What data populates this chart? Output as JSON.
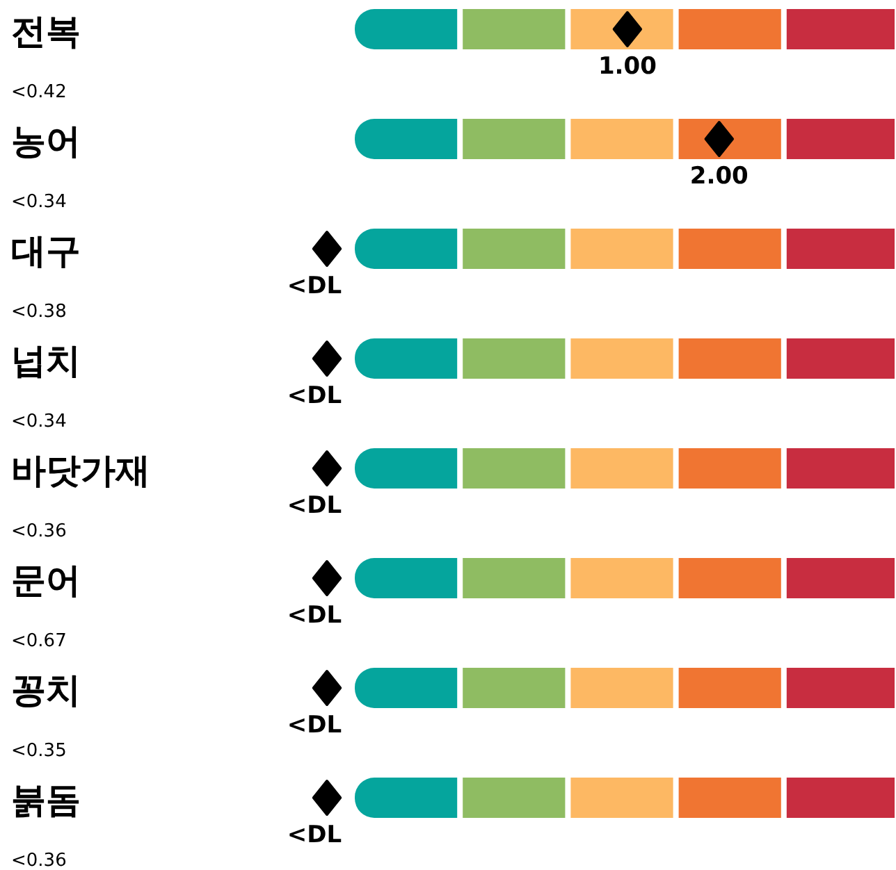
{
  "chart_data": {
    "type": "other",
    "categories": [
      "전복",
      "농어",
      "대구",
      "넙치",
      "바닷가재",
      "문어",
      "꽁치",
      "붉돔"
    ],
    "values": [
      1.0,
      2.0,
      null,
      null,
      null,
      null,
      null,
      null
    ],
    "value_labels": [
      "1.00",
      "2.00",
      "<DL",
      "<DL",
      "<DL",
      "<DL",
      "<DL",
      "<DL"
    ],
    "bands": [
      {
        "axis": "x",
        "color": "#05a59d"
      },
      {
        "axis": "x",
        "color": "#8fbc62"
      },
      {
        "axis": "x",
        "color": "#fdb863"
      },
      {
        "axis": "x",
        "color": "#f07532"
      },
      {
        "axis": "x",
        "color": "#c82d40"
      }
    ],
    "annotations": [
      {
        "text": "<0.42",
        "y": "전복"
      },
      {
        "text": "<0.34",
        "y": "농어"
      },
      {
        "text": "<0.38",
        "y": "대구"
      },
      {
        "text": "<0.34",
        "y": "넙치"
      },
      {
        "text": "<0.36",
        "y": "바닷가재"
      },
      {
        "text": "<0.67",
        "y": "문어"
      },
      {
        "text": "<0.35",
        "y": "꽁치"
      },
      {
        "text": "<0.36",
        "y": "붉돔"
      }
    ]
  }
}
